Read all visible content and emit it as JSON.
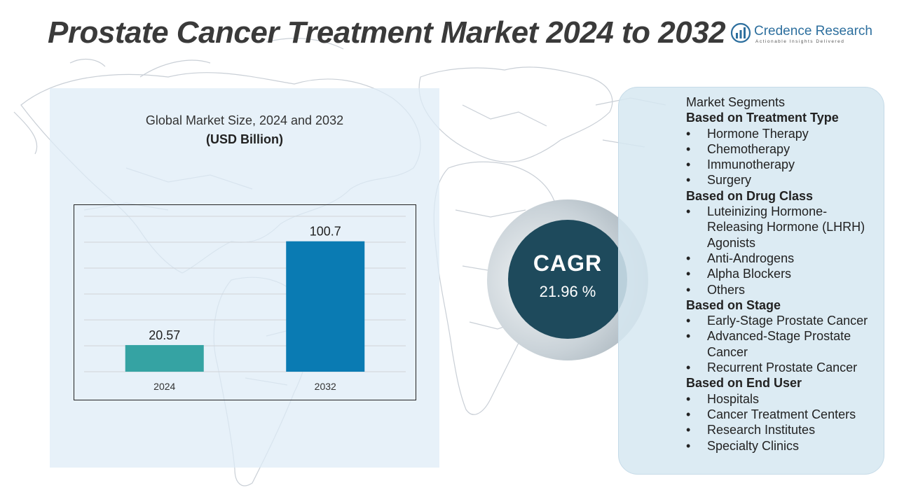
{
  "title": "Prostate Cancer Treatment Market 2024 to 2032",
  "logo": {
    "name": "Credence Research",
    "tagline": "Actionable Insights Delivered"
  },
  "chart": {
    "heading": "Global Market Size, 2024 and 2032",
    "unit": "(USD Billion)"
  },
  "chart_data": {
    "type": "bar",
    "categories": [
      "2024",
      "2032"
    ],
    "values": [
      20.57,
      100.7
    ],
    "data_labels": [
      "20.57",
      "100.7"
    ],
    "colors": [
      "#35a3a3",
      "#0a7bb3"
    ],
    "ylim": [
      0,
      120
    ],
    "grid": true,
    "title": "Global Market Size, 2024 and 2032",
    "ylabel": "(USD Billion)"
  },
  "cagr": {
    "label": "CAGR",
    "value": "21.96 %"
  },
  "segments": {
    "title": "Market Segments",
    "groups": [
      {
        "title": "Based on Treatment Type",
        "items": [
          "Hormone Therapy",
          "Chemotherapy",
          "Immunotherapy",
          "Surgery"
        ]
      },
      {
        "title": "Based on Drug Class",
        "items": [
          "Luteinizing Hormone-Releasing Hormone (LHRH) Agonists",
          "Anti-Androgens",
          "Alpha Blockers",
          "Others"
        ]
      },
      {
        "title": "Based on Stage",
        "items": [
          "Early-Stage Prostate Cancer",
          "Advanced-Stage Prostate Cancer",
          "Recurrent Prostate Cancer"
        ]
      },
      {
        "title": "Based on End User",
        "items": [
          "Hospitals",
          "Cancer Treatment Centers",
          "Research Institutes",
          "Specialty Clinics"
        ]
      }
    ]
  },
  "colors": {
    "title": "#3a3a3a",
    "cagr_circle": "#1e4a5c",
    "panel": "#dcebf5",
    "bar_2024": "#35a3a3",
    "bar_2032": "#0a7bb3"
  },
  "icons": {
    "logo": "bar-chart-logo-icon",
    "bullet": "bullet-icon"
  }
}
